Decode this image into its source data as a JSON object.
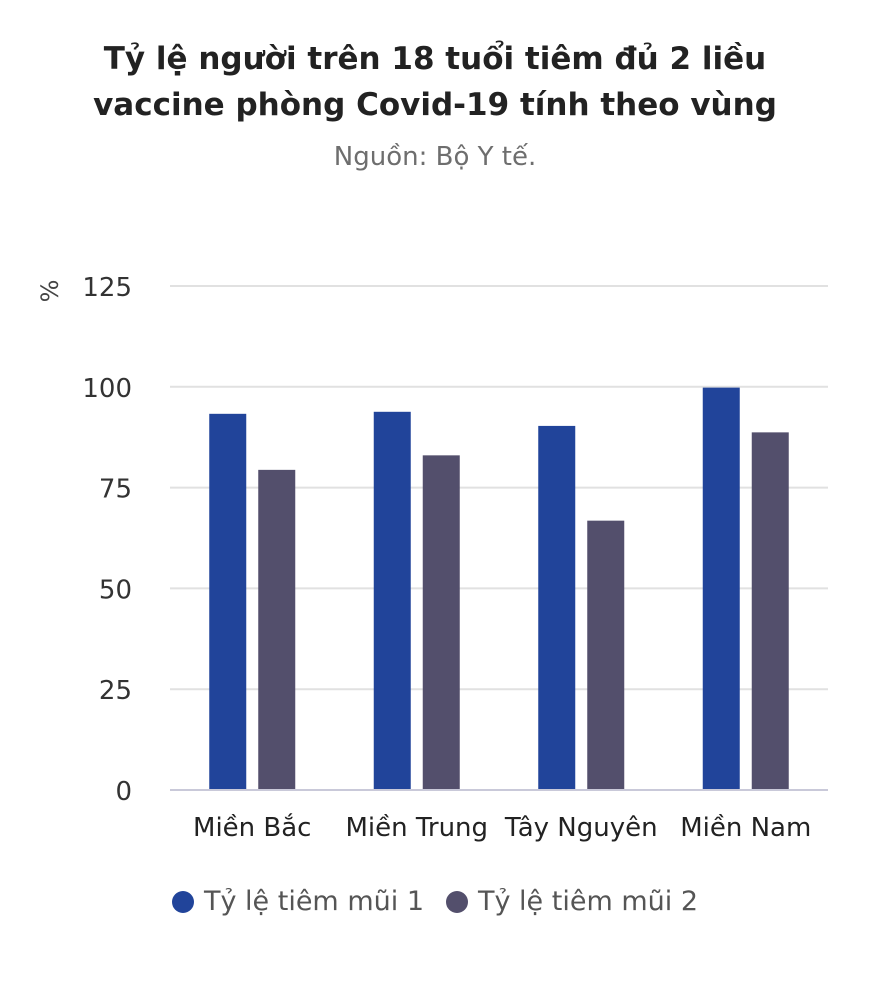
{
  "chart_data": {
    "type": "bar",
    "title_lines": [
      "Tỷ lệ người trên 18 tuổi tiêm đủ 2 liều",
      "vaccine phòng Covid-19 tính theo vùng"
    ],
    "subtitle": "Nguồn: Bộ Y tế.",
    "ylabel": "%",
    "xlabel": "",
    "ylim": [
      0,
      125
    ],
    "yticks": [
      0,
      25,
      50,
      75,
      100,
      125
    ],
    "grid": true,
    "legend_position": "bottom",
    "categories": [
      "Miền Bắc",
      "Miền Trung",
      "Tây Nguyên",
      "Miền Nam"
    ],
    "series": [
      {
        "name": "Tỷ lệ tiêm mũi 1",
        "color": "#21449a",
        "values": [
          93.3,
          93.8,
          90.3,
          99.8
        ]
      },
      {
        "name": "Tỷ lệ tiêm mũi 2",
        "color": "#534f6c",
        "values": [
          79.4,
          83.0,
          66.8,
          88.7
        ]
      }
    ],
    "colors": {
      "grid": "#e1e1e1",
      "axis": "#c9c9d9",
      "tick_text": "#333333",
      "category_text": "#222222"
    }
  }
}
